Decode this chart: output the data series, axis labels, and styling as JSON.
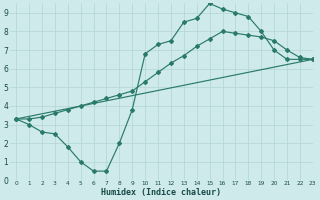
{
  "bg_color": "#ceeaea",
  "grid_color": "#b8d8d8",
  "line_color": "#2a7a6a",
  "xlabel": "Humidex (Indice chaleur)",
  "xlim": [
    -0.5,
    23
  ],
  "ylim": [
    0,
    9.5
  ],
  "xticks": [
    0,
    1,
    2,
    3,
    4,
    5,
    6,
    7,
    8,
    9,
    10,
    11,
    12,
    13,
    14,
    15,
    16,
    17,
    18,
    19,
    20,
    21,
    22,
    23
  ],
  "yticks": [
    0,
    1,
    2,
    3,
    4,
    5,
    6,
    7,
    8,
    9
  ],
  "line1_x": [
    0,
    1,
    2,
    3,
    4,
    5,
    6,
    7,
    8,
    9,
    10,
    11,
    12,
    13,
    14,
    15,
    16,
    17,
    18,
    19,
    20,
    21,
    22,
    23
  ],
  "line1_y": [
    3.3,
    3.0,
    2.6,
    2.5,
    1.8,
    1.0,
    0.5,
    0.5,
    2.0,
    3.8,
    6.8,
    7.3,
    7.5,
    8.5,
    8.7,
    9.5,
    9.2,
    9.0,
    8.8,
    8.0,
    7.0,
    6.5,
    6.5,
    6.5
  ],
  "line2_x": [
    0,
    23
  ],
  "line2_y": [
    3.3,
    6.5
  ],
  "line3_x": [
    0,
    1,
    2,
    3,
    4,
    5,
    6,
    7,
    8,
    9,
    10,
    11,
    12,
    13,
    14,
    15,
    16,
    17,
    18,
    19,
    20,
    21,
    22,
    23
  ],
  "line3_y": [
    3.3,
    3.3,
    3.4,
    3.6,
    3.8,
    4.0,
    4.2,
    4.4,
    4.6,
    4.8,
    5.3,
    5.8,
    6.3,
    6.7,
    7.2,
    7.6,
    8.0,
    7.9,
    7.8,
    7.7,
    7.5,
    7.0,
    6.6,
    6.5
  ]
}
